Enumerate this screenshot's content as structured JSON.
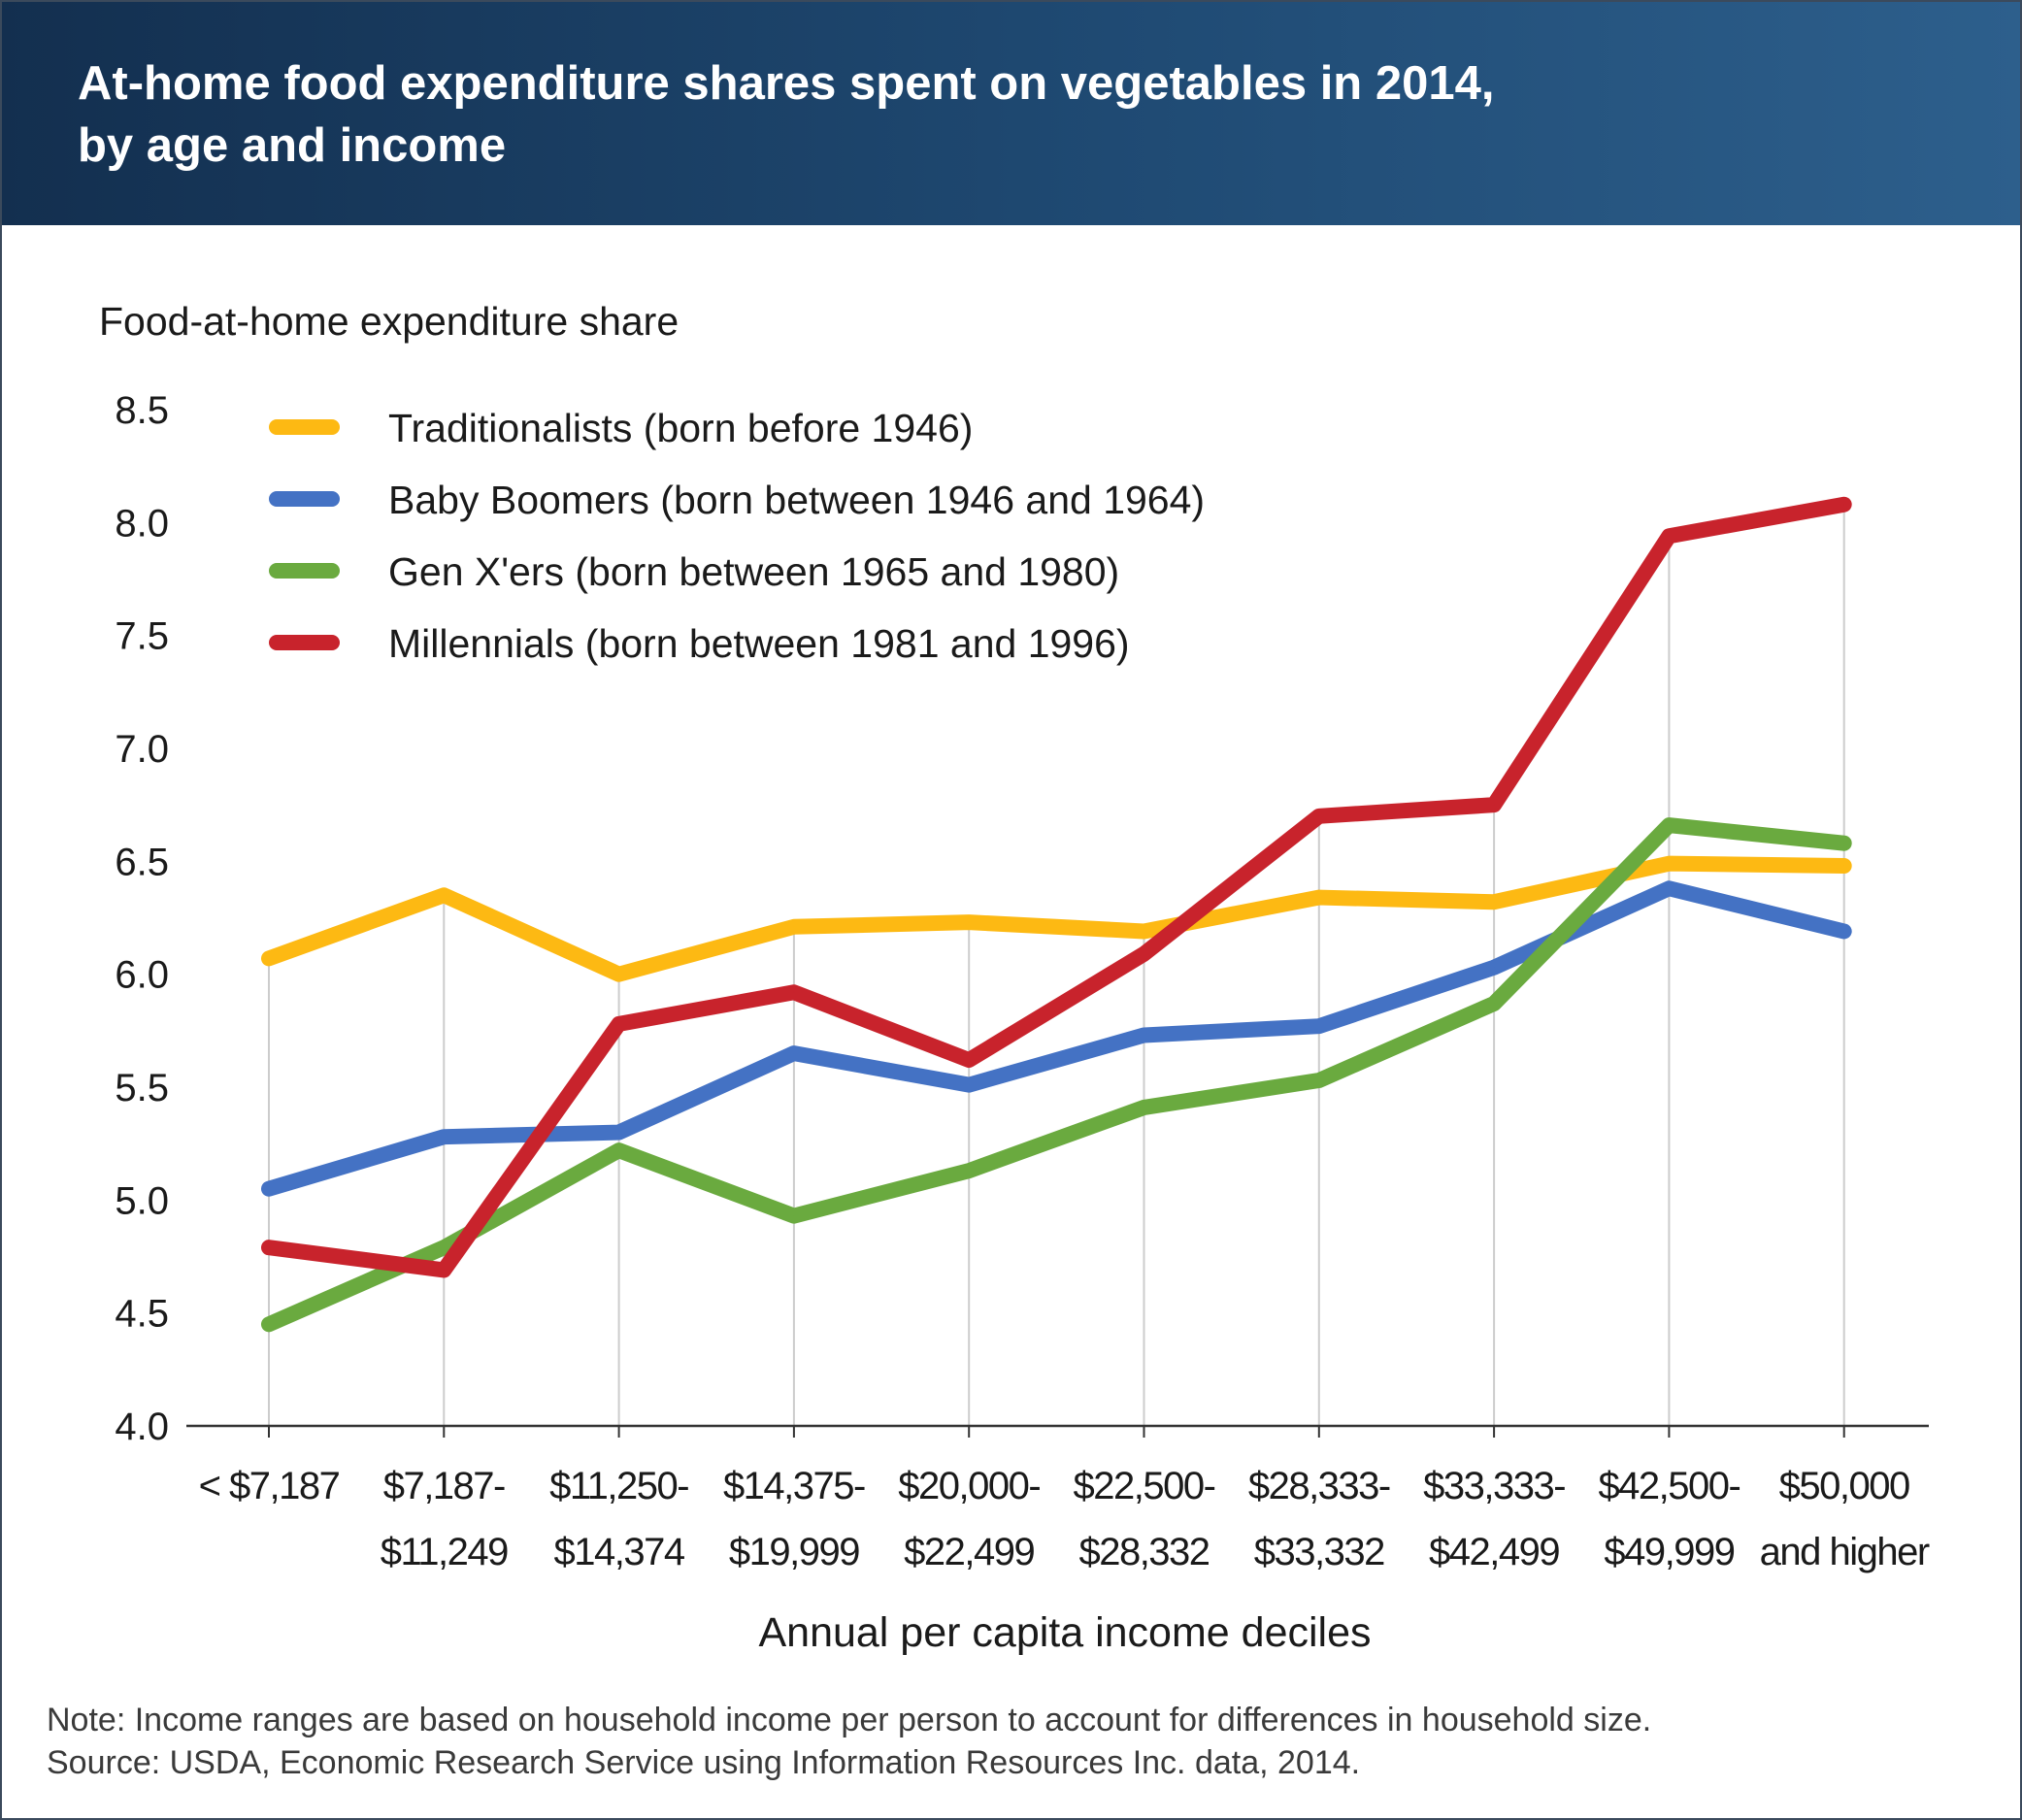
{
  "title_line1": "At-home food expenditure shares spent on vegetables in 2014,",
  "title_line2": "by age and income",
  "note": "Note: Income ranges are based on household income per person to account for differences in household size.",
  "source": "Source: USDA, Economic Research Service using Information Resources Inc. data, 2014.",
  "colors": {
    "header_start": "#132f4f",
    "header_end": "#2d5f8c",
    "gridline": "#cccccc",
    "axis": "#333333"
  },
  "chart_data": {
    "type": "line",
    "title": "At-home food expenditure shares spent on vegetables in 2014, by age and income",
    "ylabel": "Food-at-home expenditure share",
    "xlabel": "Annual per capita income deciles",
    "ylim": [
      4.0,
      8.5
    ],
    "yticks": [
      "4.0",
      "4.5",
      "5.0",
      "5.5",
      "6.0",
      "6.5",
      "7.0",
      "7.5",
      "8.0",
      "8.5"
    ],
    "grid": "vertical gridlines at each category",
    "legend_position": "top-left",
    "categories": [
      [
        "< $7,187"
      ],
      [
        "$7,187-",
        "$11,249"
      ],
      [
        "$11,250-",
        "$14,374"
      ],
      [
        "$14,375-",
        "$19,999"
      ],
      [
        "$20,000-",
        "$22,499"
      ],
      [
        "$22,500-",
        "$28,332"
      ],
      [
        "$28,333-",
        "$33,332"
      ],
      [
        "$33,333-",
        "$42,499"
      ],
      [
        "$42,500-",
        "$49,999"
      ],
      [
        "$50,000",
        "and higher"
      ]
    ],
    "series": [
      {
        "name": "Traditionalists (born before 1946)",
        "color": "#fdb913",
        "values": [
          6.07,
          6.35,
          6.0,
          6.21,
          6.23,
          6.19,
          6.34,
          6.32,
          6.49,
          6.48
        ]
      },
      {
        "name": "Baby Boomers (born between 1946 and 1964)",
        "color": "#4472c4",
        "values": [
          5.05,
          5.28,
          5.3,
          5.65,
          5.51,
          5.73,
          5.77,
          6.03,
          6.38,
          6.19
        ]
      },
      {
        "name": "Gen X'ers (born between 1965 and 1980)",
        "color": "#6aaa3f",
        "values": [
          4.45,
          4.79,
          5.22,
          4.93,
          5.13,
          5.41,
          5.53,
          5.87,
          6.66,
          6.58
        ]
      },
      {
        "name": "Millennials (born between 1981 and 1996)",
        "color": "#c8232c",
        "values": [
          4.79,
          4.69,
          5.78,
          5.92,
          5.62,
          6.09,
          6.7,
          6.75,
          7.94,
          8.08
        ]
      }
    ]
  }
}
